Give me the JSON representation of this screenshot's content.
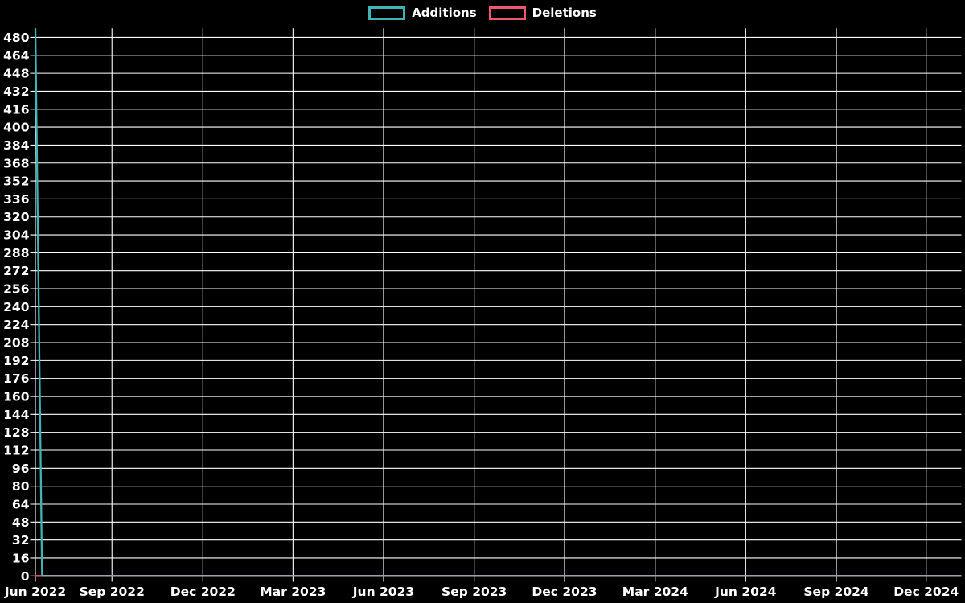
{
  "legend": {
    "items": [
      {
        "label": "Additions",
        "color": "#3FB3B5"
      },
      {
        "label": "Deletions",
        "color": "#F0566E"
      }
    ]
  },
  "chart_data": {
    "type": "line",
    "title": "",
    "summary": "Weekly code frequency: Additions spike of ~488 in the first week (mid-Jun 2022) dropping to 0 the next week and staying at 0 through early Jan 2025; Deletions are 0 for the entire range.",
    "x_axis": {
      "ticks": [
        {
          "label": "Jun 2022",
          "f": 0.0
        },
        {
          "label": "Sep 2022",
          "f": 0.0827
        },
        {
          "label": "Dec 2022",
          "f": 0.1809
        },
        {
          "label": "Mar 2023",
          "f": 0.2782
        },
        {
          "label": "Jun 2023",
          "f": 0.376
        },
        {
          "label": "Sep 2023",
          "f": 0.4739
        },
        {
          "label": "Dec 2023",
          "f": 0.5714
        },
        {
          "label": "Mar 2024",
          "f": 0.6694
        },
        {
          "label": "Jun 2024",
          "f": 0.7671
        },
        {
          "label": "Sep 2024",
          "f": 0.865
        },
        {
          "label": "Dec 2024",
          "f": 0.962
        }
      ]
    },
    "y_axis": {
      "min": 0,
      "max": 488,
      "tick_step": 16,
      "tick_labels": [
        "480",
        "464",
        "448",
        "432",
        "416",
        "400",
        "384",
        "368",
        "352",
        "336",
        "320",
        "304",
        "288",
        "272",
        "256",
        "240",
        "224",
        "208",
        "192",
        "176",
        "160",
        "144",
        "128",
        "112",
        "96",
        "80",
        "64",
        "48",
        "32",
        "16",
        "0"
      ]
    },
    "series": [
      {
        "name": "Deletions",
        "color": "#F0566E",
        "points": [
          [
            0.0,
            0
          ],
          [
            1.0,
            0
          ]
        ]
      },
      {
        "name": "Additions",
        "color": "#3FB3B5",
        "overlap_tint": "#93AFB8",
        "points": [
          [
            0.0,
            488
          ],
          [
            0.00721,
            0
          ],
          [
            1.0,
            0
          ]
        ]
      }
    ],
    "grid_color": "#FFFFFF",
    "text_color": "#FFFFFF",
    "background": "#000000",
    "grid": "on",
    "legend_position": "top-center"
  }
}
